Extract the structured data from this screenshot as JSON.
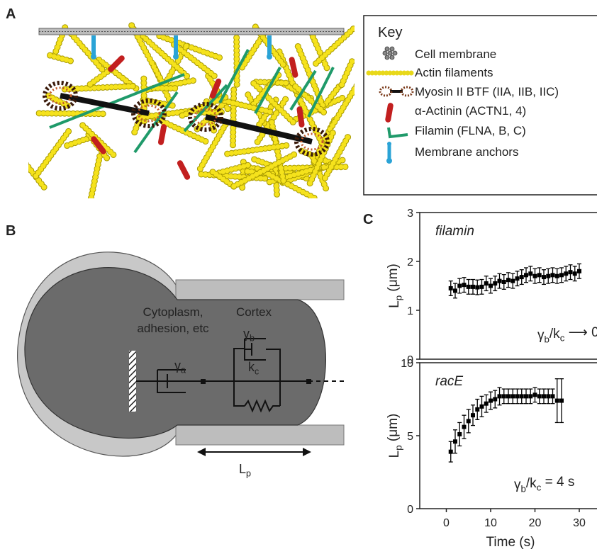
{
  "panels": {
    "a": "A",
    "b": "B",
    "c": "C"
  },
  "key": {
    "title": "Key",
    "items": [
      "Cell membrane",
      "Actin filaments",
      "Myosin II BTF (IIA, IIB, IIC)",
      "α-Actinin (ACTN1, 4)",
      "Filamin (FLNA, B, C)",
      "Membrane anchors"
    ]
  },
  "diagram": {
    "cytoplasm": [
      "Cytoplasm,",
      "adhesion, etc"
    ],
    "cortex": "Cortex",
    "gamma_a": [
      {
        "text": "γ"
      },
      {
        "sub": "a"
      }
    ],
    "gamma_b": [
      {
        "text": "γ"
      },
      {
        "sub": "b"
      }
    ],
    "k_c": [
      {
        "text": "k"
      },
      {
        "sub": "c"
      }
    ],
    "length": [
      {
        "text": "L"
      },
      {
        "sub": "p"
      }
    ]
  },
  "chart_data": [
    {
      "type": "scatter",
      "title": "filamin",
      "y_label": [
        {
          "text": "L"
        },
        {
          "sub": "p"
        },
        {
          "text": " (μm)"
        }
      ],
      "annotation": [
        {
          "text": "γ"
        },
        {
          "sub": "b"
        },
        {
          "text": "/k"
        },
        {
          "sub": "c"
        },
        {
          "text": " ⟶ 0"
        }
      ],
      "xlim": [
        -6,
        34
      ],
      "ylim": [
        0,
        3
      ],
      "yticks": [
        0,
        1,
        2,
        3
      ],
      "series": [
        {
          "color": "#000000",
          "x": [
            1,
            2,
            3,
            4,
            5,
            6,
            7,
            8,
            9,
            10,
            11,
            12,
            13,
            14,
            15,
            16,
            17,
            18,
            19,
            20,
            21,
            22,
            23,
            24,
            25,
            26,
            27,
            28,
            29,
            30
          ],
          "values": [
            1.45,
            1.4,
            1.5,
            1.52,
            1.48,
            1.48,
            1.47,
            1.48,
            1.55,
            1.5,
            1.55,
            1.6,
            1.58,
            1.62,
            1.6,
            1.65,
            1.68,
            1.72,
            1.75,
            1.7,
            1.72,
            1.68,
            1.7,
            1.72,
            1.7,
            1.72,
            1.75,
            1.78,
            1.75,
            1.8
          ],
          "errors": [
            0.15,
            0.15,
            0.15,
            0.15,
            0.15,
            0.15,
            0.15,
            0.15,
            0.15,
            0.15,
            0.15,
            0.15,
            0.15,
            0.15,
            0.15,
            0.15,
            0.15,
            0.15,
            0.15,
            0.15,
            0.15,
            0.15,
            0.15,
            0.15,
            0.15,
            0.15,
            0.15,
            0.15,
            0.15,
            0.15
          ]
        }
      ]
    },
    {
      "type": "scatter",
      "title": "racE",
      "y_label": [
        {
          "text": "L"
        },
        {
          "sub": "p"
        },
        {
          "text": " (μm)"
        }
      ],
      "annotation": [
        {
          "text": "γ"
        },
        {
          "sub": "b"
        },
        {
          "text": "/k"
        },
        {
          "sub": "c"
        },
        {
          "text": " = 4 s"
        }
      ],
      "x_label": "Time (s)",
      "xlim": [
        -6,
        34
      ],
      "xticks": [
        0,
        10,
        20,
        30
      ],
      "ylim": [
        0,
        10
      ],
      "yticks": [
        0,
        5,
        10
      ],
      "series": [
        {
          "color": "#000000",
          "x": [
            1,
            2,
            3,
            4,
            5,
            6,
            7,
            8,
            9,
            10,
            11,
            12,
            13,
            14,
            15,
            16,
            17,
            18,
            19,
            20,
            21,
            22,
            23,
            24,
            25,
            26
          ],
          "values": [
            3.9,
            4.6,
            5.1,
            5.6,
            6.0,
            6.4,
            6.8,
            7.0,
            7.2,
            7.4,
            7.5,
            7.7,
            7.7,
            7.7,
            7.7,
            7.7,
            7.7,
            7.7,
            7.7,
            7.8,
            7.7,
            7.7,
            7.7,
            7.7,
            7.4,
            7.4
          ],
          "errors": [
            0.7,
            0.8,
            0.8,
            0.8,
            0.8,
            0.7,
            0.7,
            0.7,
            0.6,
            0.6,
            0.6,
            0.6,
            0.5,
            0.5,
            0.5,
            0.5,
            0.5,
            0.5,
            0.5,
            0.5,
            0.5,
            0.5,
            0.5,
            0.5,
            1.5,
            1.5
          ]
        }
      ]
    }
  ]
}
